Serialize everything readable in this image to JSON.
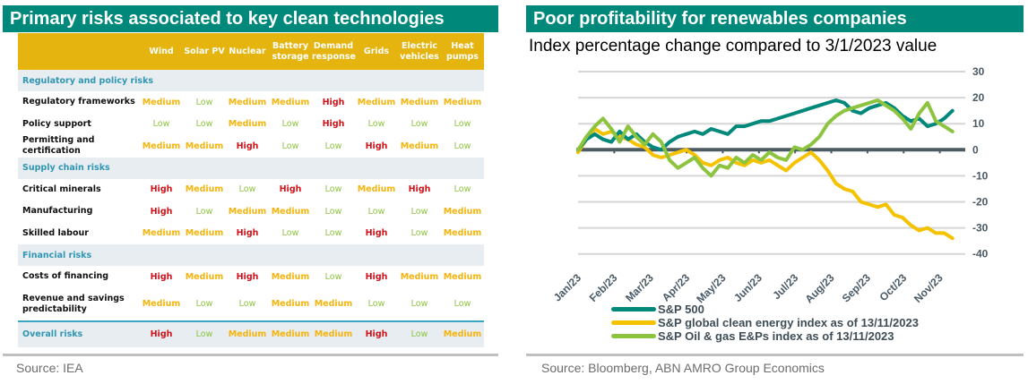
{
  "left_panel": {
    "title": "Primary risks associated to key clean technologies",
    "columns": [
      "Wind",
      "Solar PV",
      "Nuclear",
      "Battery storage",
      "Demand response",
      "Grids",
      "Electric vehicles",
      "Heat pumps"
    ],
    "sections": [
      {
        "name": "Regulatory and policy risks",
        "rows": [
          {
            "label": "Regulatory frameworks",
            "values": [
              "Medium",
              "Low",
              "Medium",
              "Medium",
              "High",
              "Medium",
              "Medium",
              "Medium"
            ]
          },
          {
            "label": "Policy support",
            "values": [
              "Low",
              "Low",
              "Medium",
              "Low",
              "High",
              "Low",
              "Low",
              "Low"
            ]
          },
          {
            "label": "Permitting and certification",
            "values": [
              "Medium",
              "Medium",
              "High",
              "Low",
              "Low",
              "High",
              "Medium",
              "Low"
            ]
          }
        ]
      },
      {
        "name": "Supply chain risks",
        "rows": [
          {
            "label": "Critical minerals",
            "values": [
              "High",
              "Medium",
              "Low",
              "High",
              "Low",
              "Medium",
              "High",
              "Low"
            ]
          },
          {
            "label": "Manufacturing",
            "values": [
              "High",
              "Low",
              "Medium",
              "Medium",
              "Low",
              "Low",
              "Low",
              "Medium"
            ]
          },
          {
            "label": "Skilled labour",
            "values": [
              "Medium",
              "Medium",
              "High",
              "Low",
              "Low",
              "High",
              "Low",
              "Medium"
            ]
          }
        ]
      },
      {
        "name": "Financial risks",
        "rows": [
          {
            "label": "Costs of financing",
            "values": [
              "High",
              "Medium",
              "High",
              "Medium",
              "Low",
              "High",
              "Medium",
              "Medium"
            ]
          },
          {
            "label": "Revenue and savings predictability",
            "values": [
              "Medium",
              "Low",
              "Low",
              "Medium",
              "Medium",
              "Low",
              "Low",
              "Low"
            ]
          }
        ]
      }
    ],
    "overall": {
      "label": "Overall risks",
      "values": [
        "High",
        "Low",
        "Medium",
        "Medium",
        "Medium",
        "High",
        "Low",
        "Medium"
      ]
    },
    "level_colors": {
      "Low": "#8cc43f",
      "Medium": "#f6b40e",
      "High": "#d0121b"
    },
    "source": "Source: IEA"
  },
  "right_panel": {
    "title": "Poor profitability for renewables companies",
    "subtitle": "Index percentage change compared to 3/1/2023 value",
    "source": "Source: Bloomberg, ABN AMRO Group Economics"
  },
  "chart_data": {
    "type": "line",
    "title": "Poor profitability for renewables companies",
    "subtitle": "Index percentage change compared to 3/1/2023 value",
    "xlabel": "",
    "ylabel": "",
    "x_tick_labels": [
      "Jan/23",
      "Feb/23",
      "Mar/23",
      "Apr/23",
      "May/23",
      "Jun/23",
      "Jul/23",
      "Aug/23",
      "Sep/23",
      "Oct/23",
      "Nov/23"
    ],
    "x_range_months": [
      0,
      10.4
    ],
    "ylim": [
      -40,
      30
    ],
    "y_ticks": [
      30,
      20,
      10,
      0,
      -10,
      -20,
      -30,
      -40
    ],
    "y_axis_side": "right",
    "grid": true,
    "legend_position": "bottom",
    "x_months": [
      0,
      0.23,
      0.46,
      0.69,
      0.92,
      1.15,
      1.38,
      1.61,
      1.84,
      2.07,
      2.3,
      2.53,
      2.76,
      2.99,
      3.22,
      3.45,
      3.68,
      3.91,
      4.14,
      4.37,
      4.6,
      4.83,
      5.06,
      5.29,
      5.52,
      5.75,
      5.98,
      6.21,
      6.44,
      6.67,
      6.9,
      7.13,
      7.36,
      7.59,
      7.82,
      8.05,
      8.28,
      8.51,
      8.74,
      8.97,
      9.2,
      9.43,
      9.66,
      9.89,
      10.12,
      10.35
    ],
    "series": [
      {
        "name": "S&P 500",
        "color": "#00897b",
        "values": [
          0,
          4,
          6,
          4,
          3,
          7,
          4,
          6,
          3,
          1,
          0,
          3,
          5,
          6,
          7,
          6,
          8,
          7,
          6,
          9,
          9,
          10,
          11,
          11,
          12,
          13,
          14,
          15,
          16,
          17,
          18,
          19,
          18,
          15,
          14,
          16,
          17,
          18,
          16,
          13,
          11,
          12,
          9,
          10,
          12,
          15
        ]
      },
      {
        "name": "S&P global clean energy index as of 13/11/2023",
        "color": "#f5c200",
        "values": [
          -1,
          4,
          8,
          6,
          7,
          5,
          4,
          2,
          1,
          -2,
          -3,
          -2,
          -1,
          0,
          -2,
          -5,
          -6,
          -4,
          -3,
          -5,
          -6,
          -4,
          -5,
          -4,
          -6,
          -8,
          -5,
          -3,
          -1,
          -4,
          -8,
          -13,
          -15,
          -16,
          -20,
          -21,
          -22,
          -21,
          -25,
          -26,
          -29,
          -31,
          -30,
          -32,
          -32,
          -34
        ]
      },
      {
        "name": "S&P Oil & gas E&Ps index as of 13/11/2023",
        "color": "#8cc43f",
        "values": [
          0,
          5,
          9,
          12,
          8,
          3,
          9,
          5,
          2,
          6,
          3,
          -4,
          -7,
          -5,
          -3,
          -7,
          -10,
          -6,
          -7,
          -3,
          -5,
          -2,
          -4,
          -1,
          -3,
          -4,
          1,
          0,
          2,
          5,
          10,
          13,
          15,
          16,
          17,
          18,
          19,
          17,
          15,
          12,
          8,
          14,
          18,
          11,
          9,
          7
        ]
      }
    ]
  }
}
